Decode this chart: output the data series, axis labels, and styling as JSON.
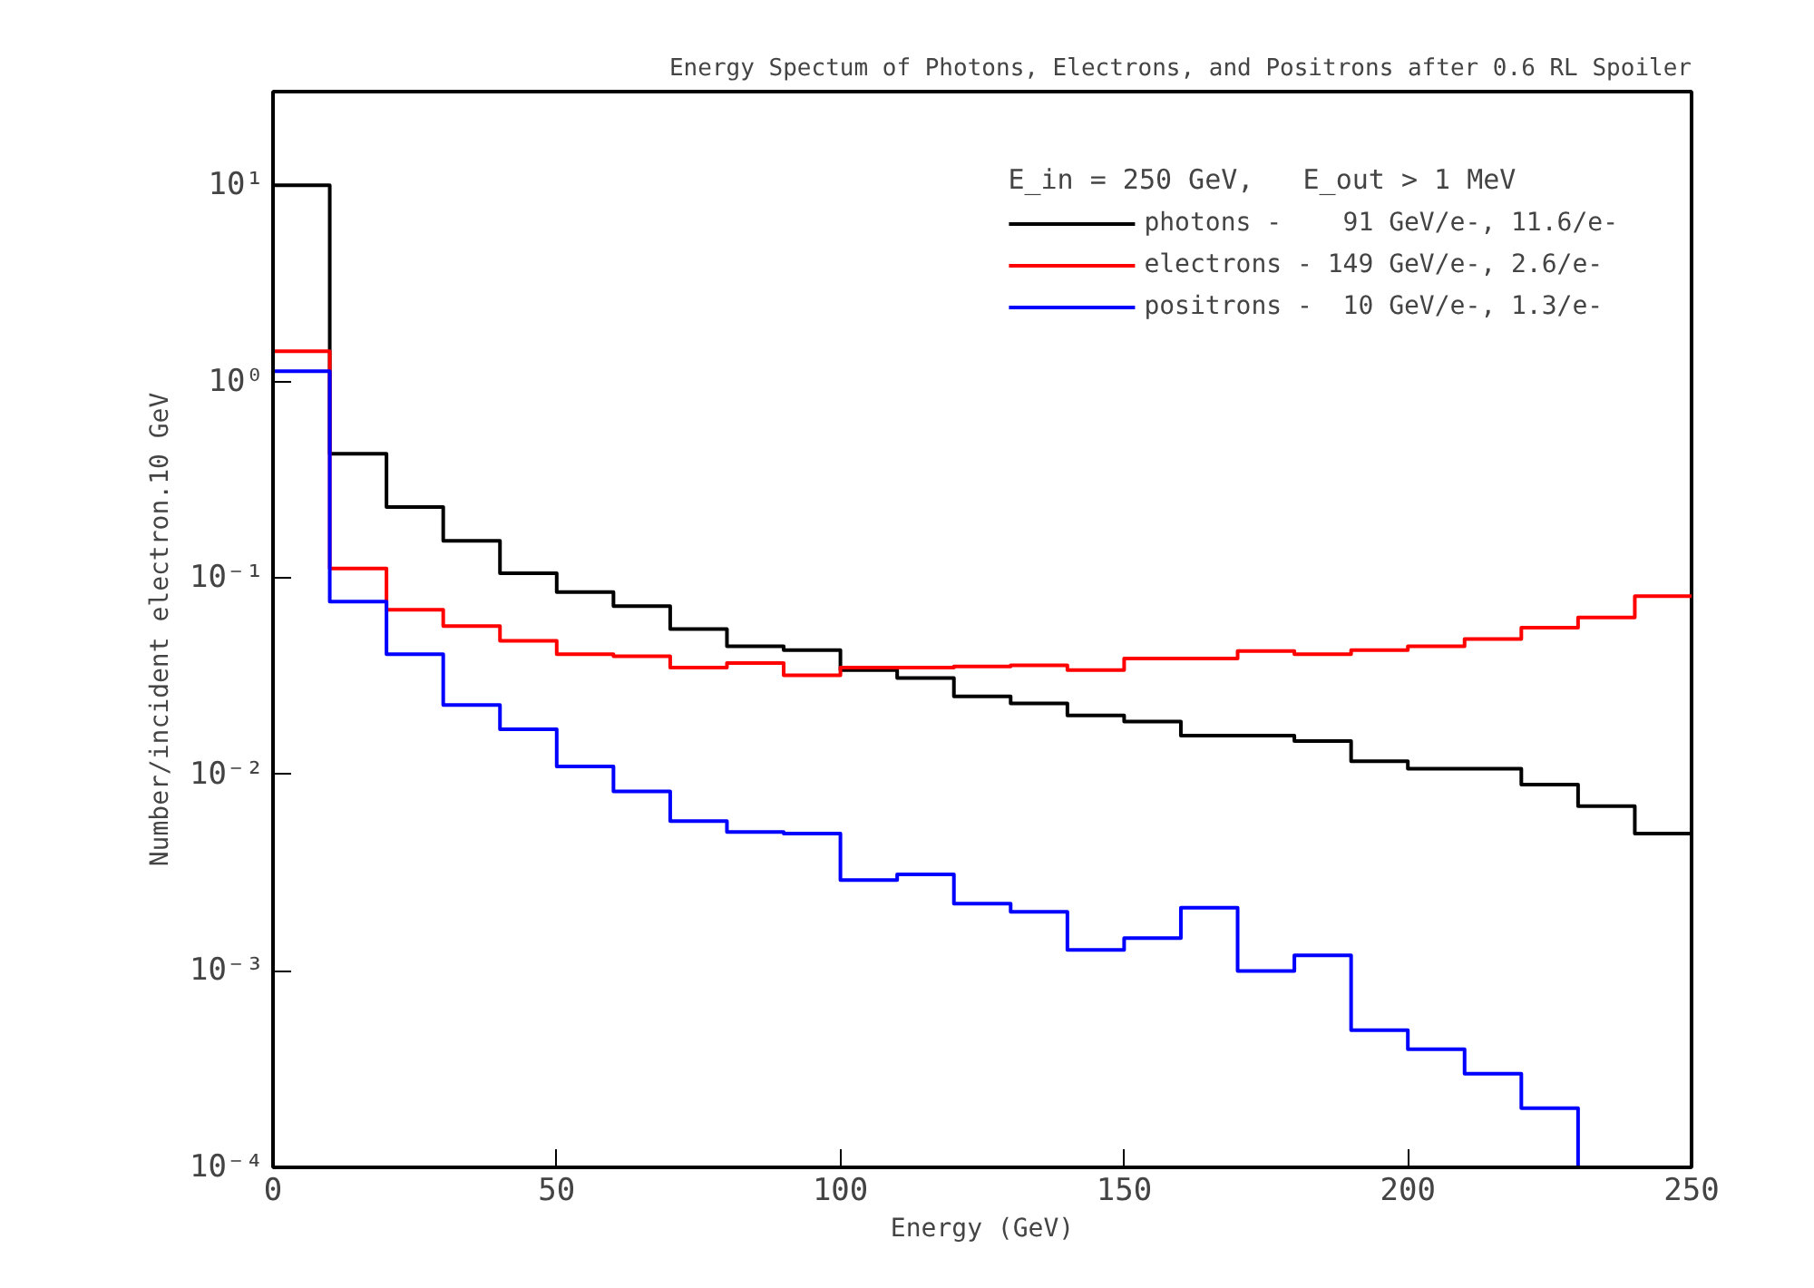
{
  "chart_data": {
    "type": "histogram",
    "title": "Energy Spectum of Photons, Electrons, and Positrons after 0.6 RL Spoiler",
    "xlabel": "Energy (GeV)",
    "ylabel": "Number/incident electron.10 GeV",
    "legend_title": "E_in = 250 GeV,   E_out > 1 MeV",
    "bins": [
      0,
      10,
      20,
      30,
      40,
      50,
      60,
      70,
      80,
      90,
      100,
      110,
      120,
      130,
      140,
      150,
      160,
      170,
      180,
      190,
      200,
      210,
      220,
      230,
      240,
      250
    ],
    "series": [
      {
        "name": "photons -    91 GeV/e-, 11.6/e-",
        "color": "#000000",
        "values": [
          10,
          0.43,
          0.23,
          0.155,
          0.106,
          0.085,
          0.072,
          0.055,
          0.045,
          0.043,
          0.034,
          0.031,
          0.025,
          0.023,
          0.02,
          0.0186,
          0.0158,
          0.0158,
          0.0148,
          0.0117,
          0.0107,
          0.0107,
          0.0089,
          0.0069,
          0.005
        ]
      },
      {
        "name": "electrons - 149 GeV/e-, 2.6/e-",
        "color": "#ff0000",
        "values": [
          1.43,
          0.112,
          0.069,
          0.057,
          0.048,
          0.041,
          0.04,
          0.035,
          0.037,
          0.032,
          0.035,
          0.035,
          0.0355,
          0.036,
          0.034,
          0.039,
          0.039,
          0.0425,
          0.041,
          0.043,
          0.045,
          0.049,
          0.056,
          0.063,
          0.081
        ]
      },
      {
        "name": "positrons -  10 GeV/e-, 1.3/e-",
        "color": "#0000ff",
        "values": [
          1.13,
          0.076,
          0.041,
          0.0226,
          0.017,
          0.011,
          0.0082,
          0.0058,
          0.0051,
          0.005,
          0.0029,
          0.0031,
          0.0022,
          0.002,
          0.00128,
          0.00147,
          0.0021,
          0.001,
          0.0012,
          0.0005,
          0.0004,
          0.0003,
          0.0002,
          0.0001,
          0.0001
        ]
      }
    ],
    "log": "y",
    "xlim": [
      0,
      250
    ],
    "ylim": [
      0.0001,
      30
    ],
    "xticks": [
      0,
      50,
      100,
      150,
      200,
      250
    ],
    "yticks": [
      {
        "value": 0.0001,
        "label": "10⁻⁴"
      },
      {
        "value": 0.001,
        "label": "10⁻³"
      },
      {
        "value": 0.01,
        "label": "10⁻²"
      },
      {
        "value": 0.1,
        "label": "10⁻¹"
      },
      {
        "value": 1,
        "label": "10⁰"
      },
      {
        "value": 10,
        "label": "10¹"
      }
    ],
    "grid": false,
    "legend": "top right"
  }
}
